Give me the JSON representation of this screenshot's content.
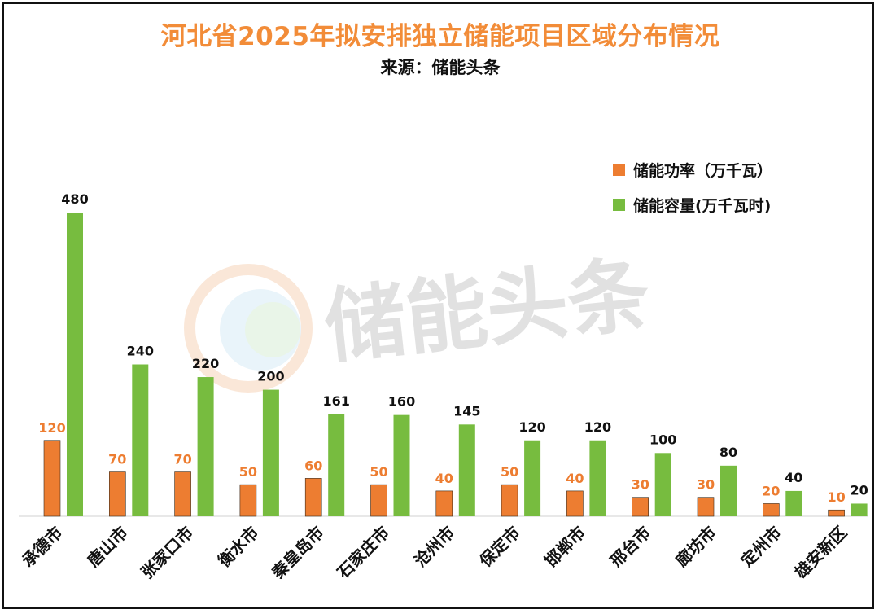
{
  "header": {
    "title": "河北省2025年拟安排独立储能项目区域分布情况",
    "subtitle": "来源：储能头条"
  },
  "watermark": {
    "text": "储能头条"
  },
  "colors": {
    "title": "#F28C38",
    "power": "#ED7D31",
    "capacity": "#77BC3F",
    "power_label": "#ED7D31",
    "capacity_label": "#111111"
  },
  "chart_data": {
    "type": "bar",
    "title": "河北省2025年拟安排独立储能项目区域分布情况",
    "categories": [
      "承德市",
      "唐山市",
      "张家口市",
      "衡水市",
      "秦皇岛市",
      "石家庄市",
      "沧州市",
      "保定市",
      "邯郸市",
      "邢台市",
      "廊坊市",
      "定州市",
      "雄安新区"
    ],
    "series": [
      {
        "name": "储能功率（万千瓦）",
        "values": [
          120,
          70,
          70,
          50,
          60,
          50,
          40,
          50,
          40,
          30,
          30,
          20,
          10
        ]
      },
      {
        "name": "储能容量(万千瓦时)",
        "values": [
          480,
          240,
          220,
          200,
          161,
          160,
          145,
          120,
          120,
          100,
          80,
          40,
          20
        ]
      }
    ],
    "xlabel": "",
    "ylabel": "",
    "ylim": [
      0,
      480
    ],
    "grid": false,
    "legend": "top-right"
  }
}
